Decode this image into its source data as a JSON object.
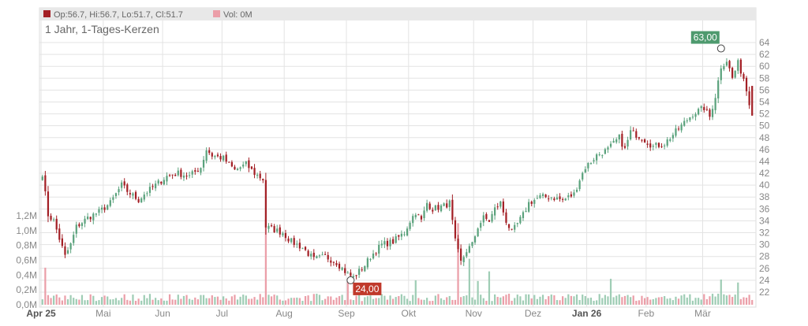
{
  "header": {
    "ohlc_label": "Op:56.7, Hi:56.7, Lo:51.7, Cl:51.7",
    "vol_label": "Vol: 0M"
  },
  "colors": {
    "up": "#5aa27c",
    "down": "#a31f25",
    "vol_up": "#9fcdb5",
    "vol_down": "#eb9ea8",
    "grid": "#e3e3e3",
    "axis_text": "#888888",
    "high_badge": "#4e9a6e",
    "low_badge": "#c0392b"
  },
  "chart_data": {
    "type": "candlestick",
    "title": "1 Jahr, 1-Tages-Kerzen",
    "grid": true,
    "price_axis": {
      "side": "right",
      "ticks": [
        22,
        24,
        26,
        28,
        30,
        32,
        34,
        36,
        38,
        40,
        42,
        44,
        46,
        48,
        50,
        52,
        54,
        56,
        58,
        60,
        62,
        64
      ],
      "labels": [
        "22",
        "24",
        "26",
        "28",
        "30",
        "32",
        "34",
        "36",
        "38",
        "40",
        "42",
        "44",
        "46",
        "48",
        "50",
        "52",
        "54",
        "56",
        "58",
        "60",
        "62",
        "64"
      ]
    },
    "volume_axis": {
      "side": "left",
      "ticks": [
        0,
        0.2,
        0.4,
        0.6,
        0.8,
        1.0,
        1.2
      ],
      "labels": [
        "0,0M",
        "0,2M",
        "0,4M",
        "0,6M",
        "0,8M",
        "1,0M",
        "1,2M"
      ]
    },
    "x_axis": {
      "months": [
        {
          "label": "Apr 25",
          "day": 0,
          "bold": true
        },
        {
          "label": "Mai",
          "day": 22,
          "bold": false
        },
        {
          "label": "Jun",
          "day": 43,
          "bold": false
        },
        {
          "label": "Jul",
          "day": 64,
          "bold": false
        },
        {
          "label": "Aug",
          "day": 86,
          "bold": false
        },
        {
          "label": "Sep",
          "day": 108,
          "bold": false
        },
        {
          "label": "Okt",
          "day": 130,
          "bold": false
        },
        {
          "label": "Nov",
          "day": 153,
          "bold": false
        },
        {
          "label": "Dez",
          "day": 174,
          "bold": false
        },
        {
          "label": "Jan 26",
          "day": 193,
          "bold": true
        },
        {
          "label": "Feb",
          "day": 214,
          "bold": false
        },
        {
          "label": "Mär",
          "day": 234,
          "bold": false
        }
      ]
    },
    "annotations": {
      "high": {
        "label": "63,00",
        "value": 63.0,
        "day": 240
      },
      "low": {
        "label": "24,00",
        "value": 24.0,
        "day": 109
      }
    },
    "keypoints": [
      [
        0,
        42
      ],
      [
        2,
        35
      ],
      [
        4,
        34
      ],
      [
        6,
        31
      ],
      [
        8,
        28
      ],
      [
        10,
        30
      ],
      [
        12,
        33
      ],
      [
        16,
        34.5
      ],
      [
        20,
        35.5
      ],
      [
        24,
        37
      ],
      [
        28,
        40
      ],
      [
        30,
        39
      ],
      [
        34,
        37.5
      ],
      [
        36,
        38.5
      ],
      [
        40,
        40
      ],
      [
        44,
        41.5
      ],
      [
        48,
        42
      ],
      [
        52,
        41.5
      ],
      [
        56,
        43
      ],
      [
        58,
        46
      ],
      [
        60,
        45
      ],
      [
        64,
        44.5
      ],
      [
        68,
        42.5
      ],
      [
        72,
        43.5
      ],
      [
        75,
        42
      ],
      [
        78,
        41
      ],
      [
        79,
        33
      ],
      [
        82,
        32.5
      ],
      [
        85,
        32
      ],
      [
        88,
        30.5
      ],
      [
        92,
        29.5
      ],
      [
        96,
        27.5
      ],
      [
        100,
        28
      ],
      [
        104,
        27
      ],
      [
        108,
        25
      ],
      [
        110,
        24.5
      ],
      [
        114,
        26.5
      ],
      [
        116,
        28
      ],
      [
        120,
        30
      ],
      [
        124,
        30.5
      ],
      [
        128,
        32
      ],
      [
        130,
        34
      ],
      [
        132,
        35.5
      ],
      [
        134,
        34
      ],
      [
        136,
        37
      ],
      [
        138,
        36
      ],
      [
        142,
        36.5
      ],
      [
        144,
        37
      ],
      [
        146,
        30.5
      ],
      [
        148,
        27
      ],
      [
        150,
        29
      ],
      [
        152,
        30
      ],
      [
        154,
        33
      ],
      [
        156,
        34.5
      ],
      [
        158,
        34
      ],
      [
        160,
        36
      ],
      [
        162,
        37
      ],
      [
        164,
        34
      ],
      [
        166,
        32
      ],
      [
        168,
        33.5
      ],
      [
        170,
        35
      ],
      [
        172,
        37
      ],
      [
        176,
        38
      ],
      [
        180,
        38
      ],
      [
        184,
        37.5
      ],
      [
        188,
        38.5
      ],
      [
        190,
        41
      ],
      [
        192,
        43
      ],
      [
        196,
        45
      ],
      [
        200,
        46
      ],
      [
        204,
        48
      ],
      [
        206,
        46
      ],
      [
        208,
        49
      ],
      [
        212,
        48
      ],
      [
        216,
        46.5
      ],
      [
        220,
        47
      ],
      [
        224,
        49
      ],
      [
        226,
        50
      ],
      [
        230,
        52
      ],
      [
        234,
        53
      ],
      [
        236,
        51.5
      ],
      [
        238,
        55
      ],
      [
        240,
        60
      ],
      [
        242,
        61
      ],
      [
        244,
        58
      ],
      [
        246,
        60.5
      ],
      [
        248,
        58
      ],
      [
        250,
        54
      ]
    ],
    "volume_spikes": [
      {
        "day": 1,
        "value": 0.5,
        "up": false
      },
      {
        "day": 79,
        "value": 1.15,
        "up": false
      },
      {
        "day": 108,
        "value": 0.35,
        "up": false
      },
      {
        "day": 132,
        "value": 0.33,
        "up": true
      },
      {
        "day": 147,
        "value": 1.1,
        "up": false
      },
      {
        "day": 151,
        "value": 0.62,
        "up": true
      },
      {
        "day": 154,
        "value": 0.32,
        "up": true
      },
      {
        "day": 158,
        "value": 0.45,
        "up": true
      },
      {
        "day": 201,
        "value": 0.35,
        "up": true
      },
      {
        "day": 240,
        "value": 0.34,
        "up": true
      },
      {
        "day": 246,
        "value": 0.3,
        "up": true
      }
    ],
    "last": {
      "open": 56.7,
      "high": 56.7,
      "low": 51.7,
      "close": 51.7
    }
  }
}
